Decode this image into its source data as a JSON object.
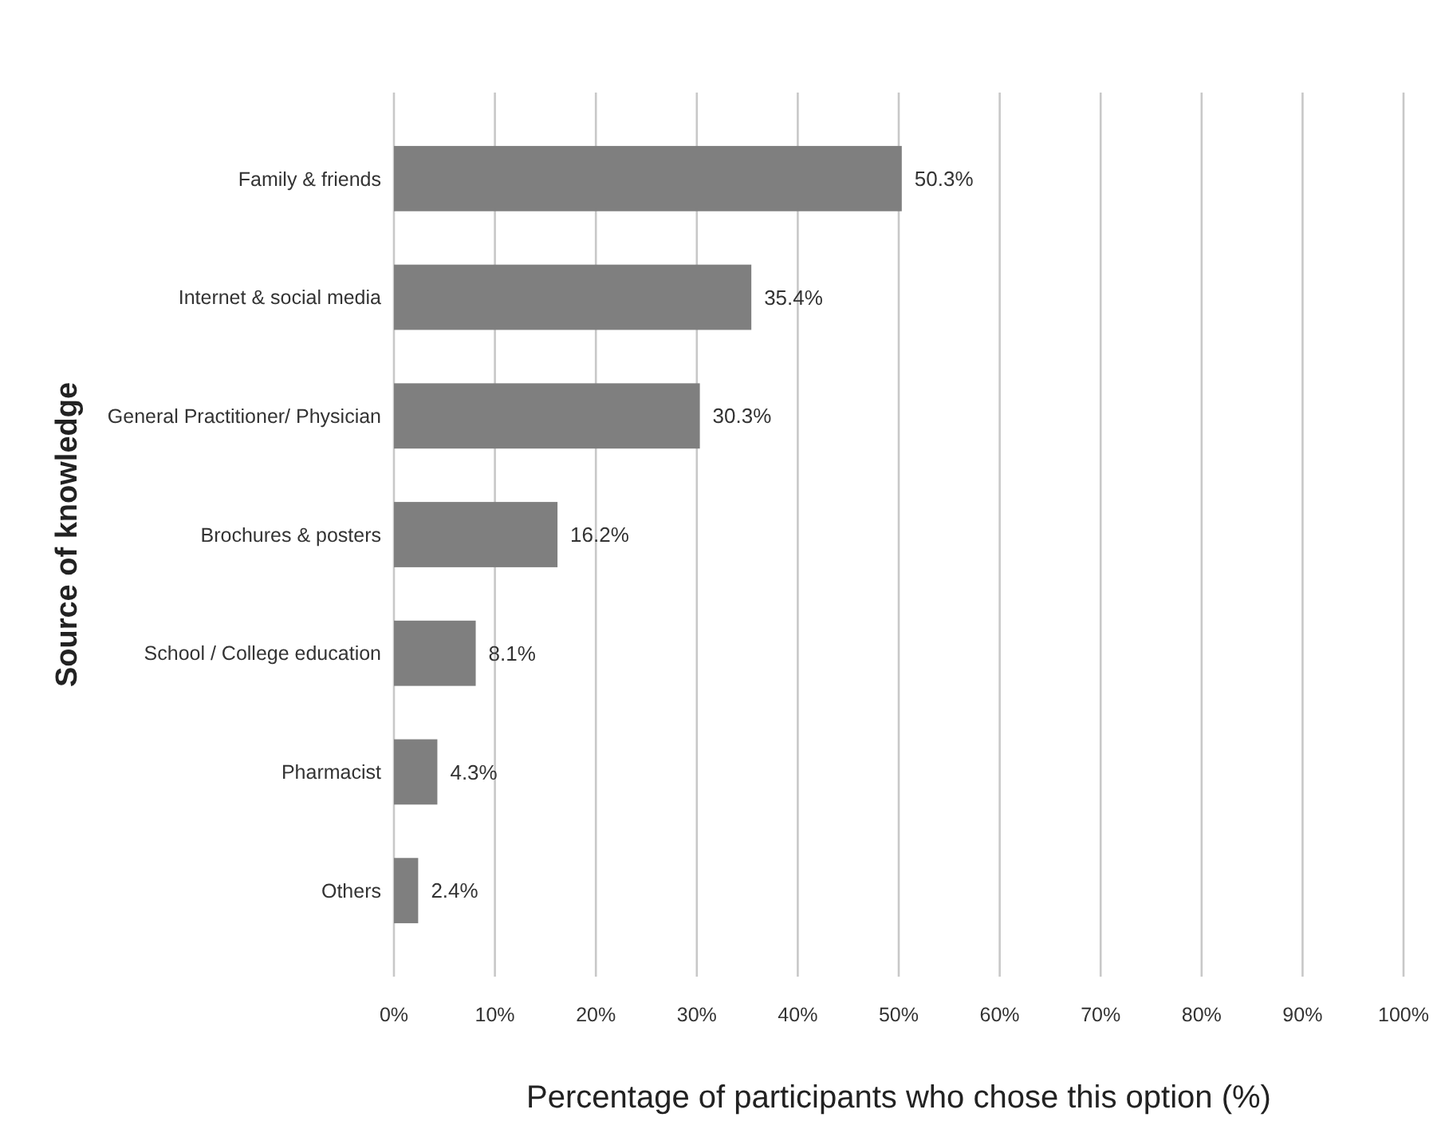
{
  "chart_data": {
    "type": "bar",
    "orientation": "horizontal",
    "xlabel": "Percentage of participants who chose this option (%)",
    "ylabel": "Source of knowledge",
    "categories": [
      "Family & friends",
      "Internet & social media",
      "General Practitioner/ Physician",
      "Brochures & posters",
      "School / College education",
      "Pharmacist",
      "Others"
    ],
    "values": [
      50.3,
      35.4,
      30.3,
      16.2,
      8.1,
      4.3,
      2.4
    ],
    "value_labels": [
      "50.3%",
      "35.4%",
      "30.3%",
      "16.2%",
      "8.1%",
      "4.3%",
      "2.4%"
    ],
    "color": "#7f7f7f",
    "xlim": [
      0,
      100
    ],
    "xticks": [
      {
        "value": 0,
        "label": "0%"
      },
      {
        "value": 10,
        "label": "10%"
      },
      {
        "value": 20,
        "label": "20%"
      },
      {
        "value": 30,
        "label": "30%"
      },
      {
        "value": 40,
        "label": "40%"
      },
      {
        "value": 50,
        "label": "50%"
      },
      {
        "value": 60,
        "label": "60%"
      },
      {
        "value": 70,
        "label": "70%"
      },
      {
        "value": 80,
        "label": "80%"
      },
      {
        "value": 90,
        "label": "90%"
      },
      {
        "value": 100,
        "label": "100%"
      }
    ],
    "grid": "x"
  }
}
